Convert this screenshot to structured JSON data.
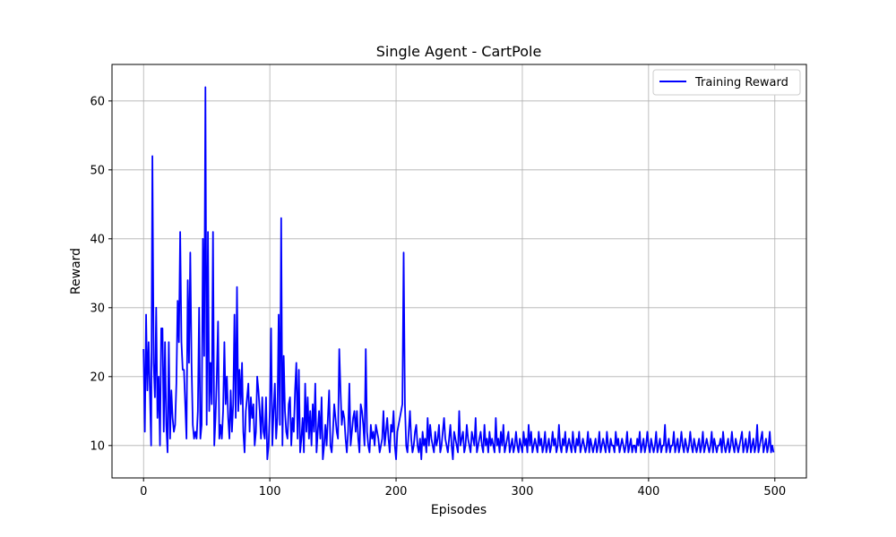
{
  "chart_data": {
    "type": "line",
    "title": "Single Agent - CartPole",
    "xlabel": "Episodes",
    "ylabel": "Reward",
    "xlim": [
      -25,
      525
    ],
    "ylim": [
      5.3,
      65.3
    ],
    "xticks": [
      0,
      100,
      200,
      300,
      400,
      500
    ],
    "yticks": [
      10,
      20,
      30,
      40,
      50,
      60
    ],
    "grid": true,
    "legend_position": "top-right",
    "series": [
      {
        "name": "Training Reward",
        "color": "#0000ff",
        "x_start": 0,
        "x_step": 1,
        "values": [
          24,
          12,
          29,
          18,
          25,
          18,
          10,
          52,
          22,
          17,
          30,
          14,
          20,
          10,
          27,
          27,
          12,
          25,
          13,
          9,
          25,
          11,
          18,
          14,
          12,
          13,
          19,
          31,
          25,
          41,
          25,
          21,
          21,
          16,
          11,
          34,
          22,
          38,
          22,
          13,
          11,
          12,
          11,
          15,
          30,
          11,
          13,
          40,
          23,
          62,
          13,
          41,
          15,
          22,
          16,
          41,
          10,
          14,
          20,
          28,
          11,
          13,
          11,
          15,
          25,
          16,
          20,
          14,
          11,
          18,
          12,
          16,
          29,
          14,
          33,
          15,
          21,
          16,
          22,
          12,
          9,
          15,
          17,
          19,
          12,
          17,
          14,
          16,
          10,
          12,
          20,
          18,
          15,
          11,
          17,
          12,
          11,
          17,
          8,
          10,
          15,
          27,
          10,
          15,
          19,
          11,
          14,
          29,
          13,
          43,
          10,
          23,
          15,
          12,
          11,
          16,
          17,
          10,
          14,
          12,
          18,
          22,
          11,
          21,
          9,
          11,
          14,
          9,
          19,
          12,
          17,
          11,
          15,
          10,
          16,
          12,
          19,
          9,
          12,
          15,
          11,
          17,
          8,
          10,
          13,
          10,
          14,
          18,
          10,
          9,
          12,
          16,
          14,
          12,
          11,
          24,
          18,
          13,
          15,
          14,
          11,
          9,
          12,
          19,
          10,
          12,
          14,
          15,
          12,
          15,
          11,
          9,
          16,
          15,
          13,
          10,
          24,
          12,
          10,
          9,
          13,
          11,
          12,
          10,
          13,
          12,
          11,
          9,
          10,
          11,
          15,
          10,
          12,
          14,
          11,
          9,
          13,
          12,
          15,
          10,
          8,
          12,
          13,
          14,
          15,
          16,
          38,
          16,
          10,
          9,
          12,
          15,
          11,
          9,
          10,
          12,
          13,
          10,
          9,
          11,
          8,
          12,
          10,
          11,
          9,
          14,
          10,
          13,
          11,
          10,
          9,
          12,
          10,
          11,
          13,
          9,
          10,
          12,
          14,
          11,
          10,
          9,
          11,
          13,
          10,
          8,
          12,
          11,
          10,
          9,
          15,
          10,
          11,
          12,
          9,
          10,
          13,
          11,
          10,
          9,
          12,
          11,
          10,
          14,
          9,
          10,
          11,
          12,
          10,
          9,
          13,
          10,
          11,
          9,
          12,
          10,
          11,
          10,
          9,
          14,
          10,
          11,
          9,
          12,
          10,
          13,
          9,
          10,
          11,
          12,
          9,
          10,
          11,
          9,
          10,
          12,
          10,
          9,
          11,
          10,
          9,
          12,
          10,
          11,
          9,
          13,
          10,
          12,
          9,
          10,
          11,
          10,
          9,
          12,
          10,
          11,
          9,
          10,
          12,
          9,
          10,
          11,
          9,
          10,
          12,
          10,
          11,
          9,
          10,
          13,
          10,
          9,
          11,
          10,
          12,
          9,
          10,
          11,
          10,
          9,
          12,
          10,
          9,
          11,
          10,
          12,
          9,
          10,
          11,
          10,
          9,
          10,
          12,
          9,
          11,
          10,
          9,
          10,
          11,
          9,
          10,
          12,
          9,
          10,
          11,
          10,
          9,
          12,
          10,
          9,
          11,
          10,
          10,
          9,
          12,
          10,
          11,
          9,
          10,
          11,
          10,
          9,
          10,
          12,
          9,
          10,
          11,
          9,
          10,
          10,
          9,
          11,
          10,
          12,
          9,
          10,
          11,
          9,
          10,
          12,
          10,
          9,
          11,
          10,
          9,
          10,
          12,
          9,
          10,
          11,
          9,
          10,
          10,
          13,
          9,
          10,
          11,
          9,
          10,
          10,
          12,
          9,
          10,
          11,
          9,
          10,
          12,
          10,
          9,
          11,
          10,
          9,
          10,
          12,
          10,
          9,
          11,
          10,
          9,
          10,
          11,
          9,
          10,
          12,
          9,
          10,
          11,
          10,
          9,
          10,
          12,
          9,
          11,
          10,
          9,
          10,
          10,
          11,
          9,
          12,
          10,
          9,
          10,
          11,
          9,
          10,
          12,
          10,
          9,
          11,
          10,
          9,
          10,
          11,
          12,
          9,
          10,
          11,
          9,
          10,
          12,
          9,
          10,
          11,
          9,
          10,
          13,
          9,
          10,
          11,
          12,
          9,
          10,
          11,
          9,
          10,
          12,
          9,
          10,
          9
        ]
      }
    ]
  }
}
